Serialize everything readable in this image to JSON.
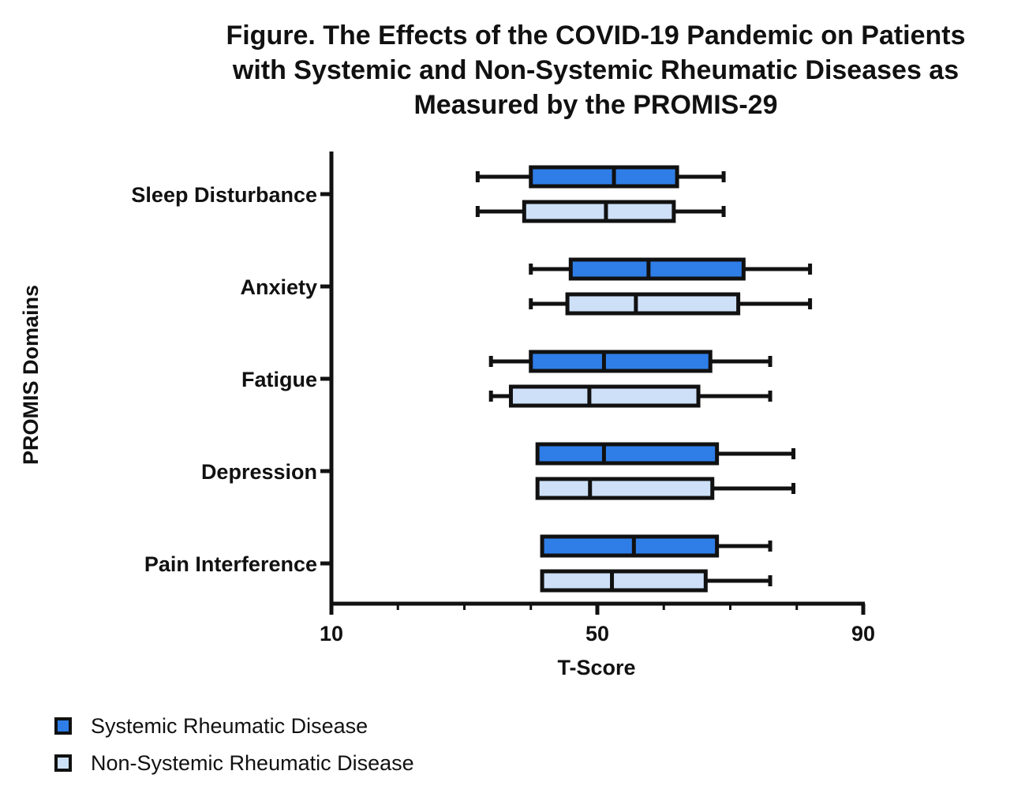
{
  "chart_data": {
    "type": "boxplot",
    "orientation": "horizontal",
    "title_lines": [
      "Figure. The Effects of the COVID-19 Pandemic on Patients",
      "with Systemic and Non-Systemic Rheumatic Diseases as",
      "Measured by the PROMIS-29"
    ],
    "xlabel": "T-Score",
    "ylabel": "PROMIS Domains",
    "xlim": [
      10,
      90
    ],
    "xticks": [
      10,
      50,
      90
    ],
    "minor_ticks": [
      20,
      30,
      40,
      60,
      70,
      80
    ],
    "categories": [
      "Sleep Disturbance",
      "Anxiety",
      "Fatigue",
      "Depression",
      "Pain Interference"
    ],
    "series": [
      {
        "name": "Systemic Rheumatic Disease",
        "color": "#2f7ee8",
        "boxes": [
          {
            "min": 32,
            "q1": 40,
            "median": 52.5,
            "q3": 62,
            "max": 69
          },
          {
            "min": 40,
            "q1": 46,
            "median": 57.7,
            "q3": 72,
            "max": 82
          },
          {
            "min": 34,
            "q1": 40,
            "median": 51,
            "q3": 67,
            "max": 76
          },
          {
            "min": 41,
            "q1": 41,
            "median": 51,
            "q3": 68,
            "max": 79.5
          },
          {
            "min": 41.7,
            "q1": 41.7,
            "median": 55.5,
            "q3": 68,
            "max": 76
          }
        ]
      },
      {
        "name": "Non-Systemic Rheumatic Disease",
        "color": "#cde0f8",
        "boxes": [
          {
            "min": 32,
            "q1": 39,
            "median": 51.3,
            "q3": 61.5,
            "max": 69
          },
          {
            "min": 40,
            "q1": 45.5,
            "median": 55.8,
            "q3": 71.2,
            "max": 82
          },
          {
            "min": 34,
            "q1": 37,
            "median": 48.8,
            "q3": 65.2,
            "max": 76
          },
          {
            "min": 41,
            "q1": 41,
            "median": 48.9,
            "q3": 67.3,
            "max": 79.5
          },
          {
            "min": 41.7,
            "q1": 41.7,
            "median": 52.2,
            "q3": 66.3,
            "max": 76
          }
        ]
      }
    ]
  }
}
